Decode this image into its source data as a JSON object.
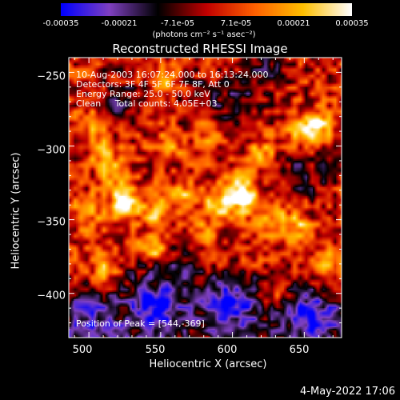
{
  "colorbar": {
    "ticks": [
      "-0.00035",
      "-0.00021",
      "-7.1e-05",
      "7.1e-05",
      "0.00021",
      "0.00035"
    ],
    "tick_values": [
      -0.00035,
      -0.00021,
      -7.1e-05,
      7.1e-05,
      0.00021,
      0.00035
    ],
    "range": [
      -0.00035,
      0.00035
    ],
    "units": "(photons cm⁻² s⁻¹ asec⁻²)"
  },
  "chart_data": {
    "type": "heatmap",
    "title": "Reconstructed RHESSI Image",
    "xlabel": "Heliocentric X (arcsec)",
    "ylabel": "Heliocentric Y (arcsec)",
    "xlim": [
      486,
      676
    ],
    "ylim": [
      -430,
      -240
    ],
    "x_ticks": [
      500,
      550,
      600,
      650
    ],
    "x_tick_labels": [
      "500",
      "550",
      "600",
      "650"
    ],
    "y_ticks": [
      -250,
      -300,
      -350,
      -400
    ],
    "y_tick_labels": [
      "−250",
      "−300",
      "−350",
      "−400"
    ],
    "colormap": [
      "#0000ff",
      "#7f40c0",
      "#000000",
      "#c00000",
      "#ff6000",
      "#ffc000",
      "#ffffff"
    ],
    "peak": [
      544,
      -369
    ],
    "peaks": [
      {
        "x": 544,
        "y": -369,
        "v": 0.00034
      },
      {
        "x": 525,
        "y": -338,
        "v": 0.00033
      },
      {
        "x": 545,
        "y": -345,
        "v": 0.00018
      },
      {
        "x": 565,
        "y": -335,
        "v": 0.0002
      },
      {
        "x": 590,
        "y": -340,
        "v": 0.00024
      },
      {
        "x": 603,
        "y": -330,
        "v": 0.00026
      },
      {
        "x": 610,
        "y": -337,
        "v": 0.00023
      },
      {
        "x": 628,
        "y": -350,
        "v": 0.0002
      },
      {
        "x": 645,
        "y": -355,
        "v": 0.00022
      },
      {
        "x": 500,
        "y": -285,
        "v": 0.00017
      },
      {
        "x": 510,
        "y": -305,
        "v": 0.00016
      },
      {
        "x": 518,
        "y": -320,
        "v": 0.00019
      },
      {
        "x": 510,
        "y": -385,
        "v": 0.00018
      },
      {
        "x": 660,
        "y": -285,
        "v": 0.00026
      },
      {
        "x": 650,
        "y": -290,
        "v": 0.00024
      },
      {
        "x": 585,
        "y": -290,
        "v": 0.00018
      },
      {
        "x": 620,
        "y": -305,
        "v": 0.00019
      },
      {
        "x": 556,
        "y": -255,
        "v": 0.00016
      },
      {
        "x": 500,
        "y": -345,
        "v": 0.00016
      },
      {
        "x": 580,
        "y": -360,
        "v": 0.00014
      },
      {
        "x": 555,
        "y": -300,
        "v": 0.00015
      },
      {
        "x": 630,
        "y": -400,
        "v": 0.00015
      },
      {
        "x": 670,
        "y": -380,
        "v": 0.00016
      }
    ],
    "troughs": [
      {
        "x": 545,
        "y": -410,
        "v": -0.00022
      },
      {
        "x": 600,
        "y": -405,
        "v": -0.00024
      },
      {
        "x": 500,
        "y": -420,
        "v": -0.00016
      },
      {
        "x": 655,
        "y": -415,
        "v": -0.0002
      },
      {
        "x": 620,
        "y": -250,
        "v": -0.00016
      },
      {
        "x": 540,
        "y": -375,
        "v": -0.0001
      },
      {
        "x": 565,
        "y": -385,
        "v": -0.00016
      },
      {
        "x": 520,
        "y": -270,
        "v": -0.00012
      },
      {
        "x": 600,
        "y": -275,
        "v": -0.00014
      },
      {
        "x": 650,
        "y": -320,
        "v": -0.00014
      },
      {
        "x": 575,
        "y": -265,
        "v": -0.0001
      }
    ]
  },
  "info": {
    "line1": "10-Aug-2003 16:07:24.000 to 16:13:24.000",
    "line2": "Detectors: 3F 4F 5F 6F 7F 8F, Att 0",
    "line3": "Energy Range: 25.0 - 50.0 keV",
    "line4": "Clean     Total counts: 4.05E+03",
    "peak_label": "Position of Peak = [544,-369]"
  },
  "footer": {
    "date": "4-May-2022 17:06"
  }
}
